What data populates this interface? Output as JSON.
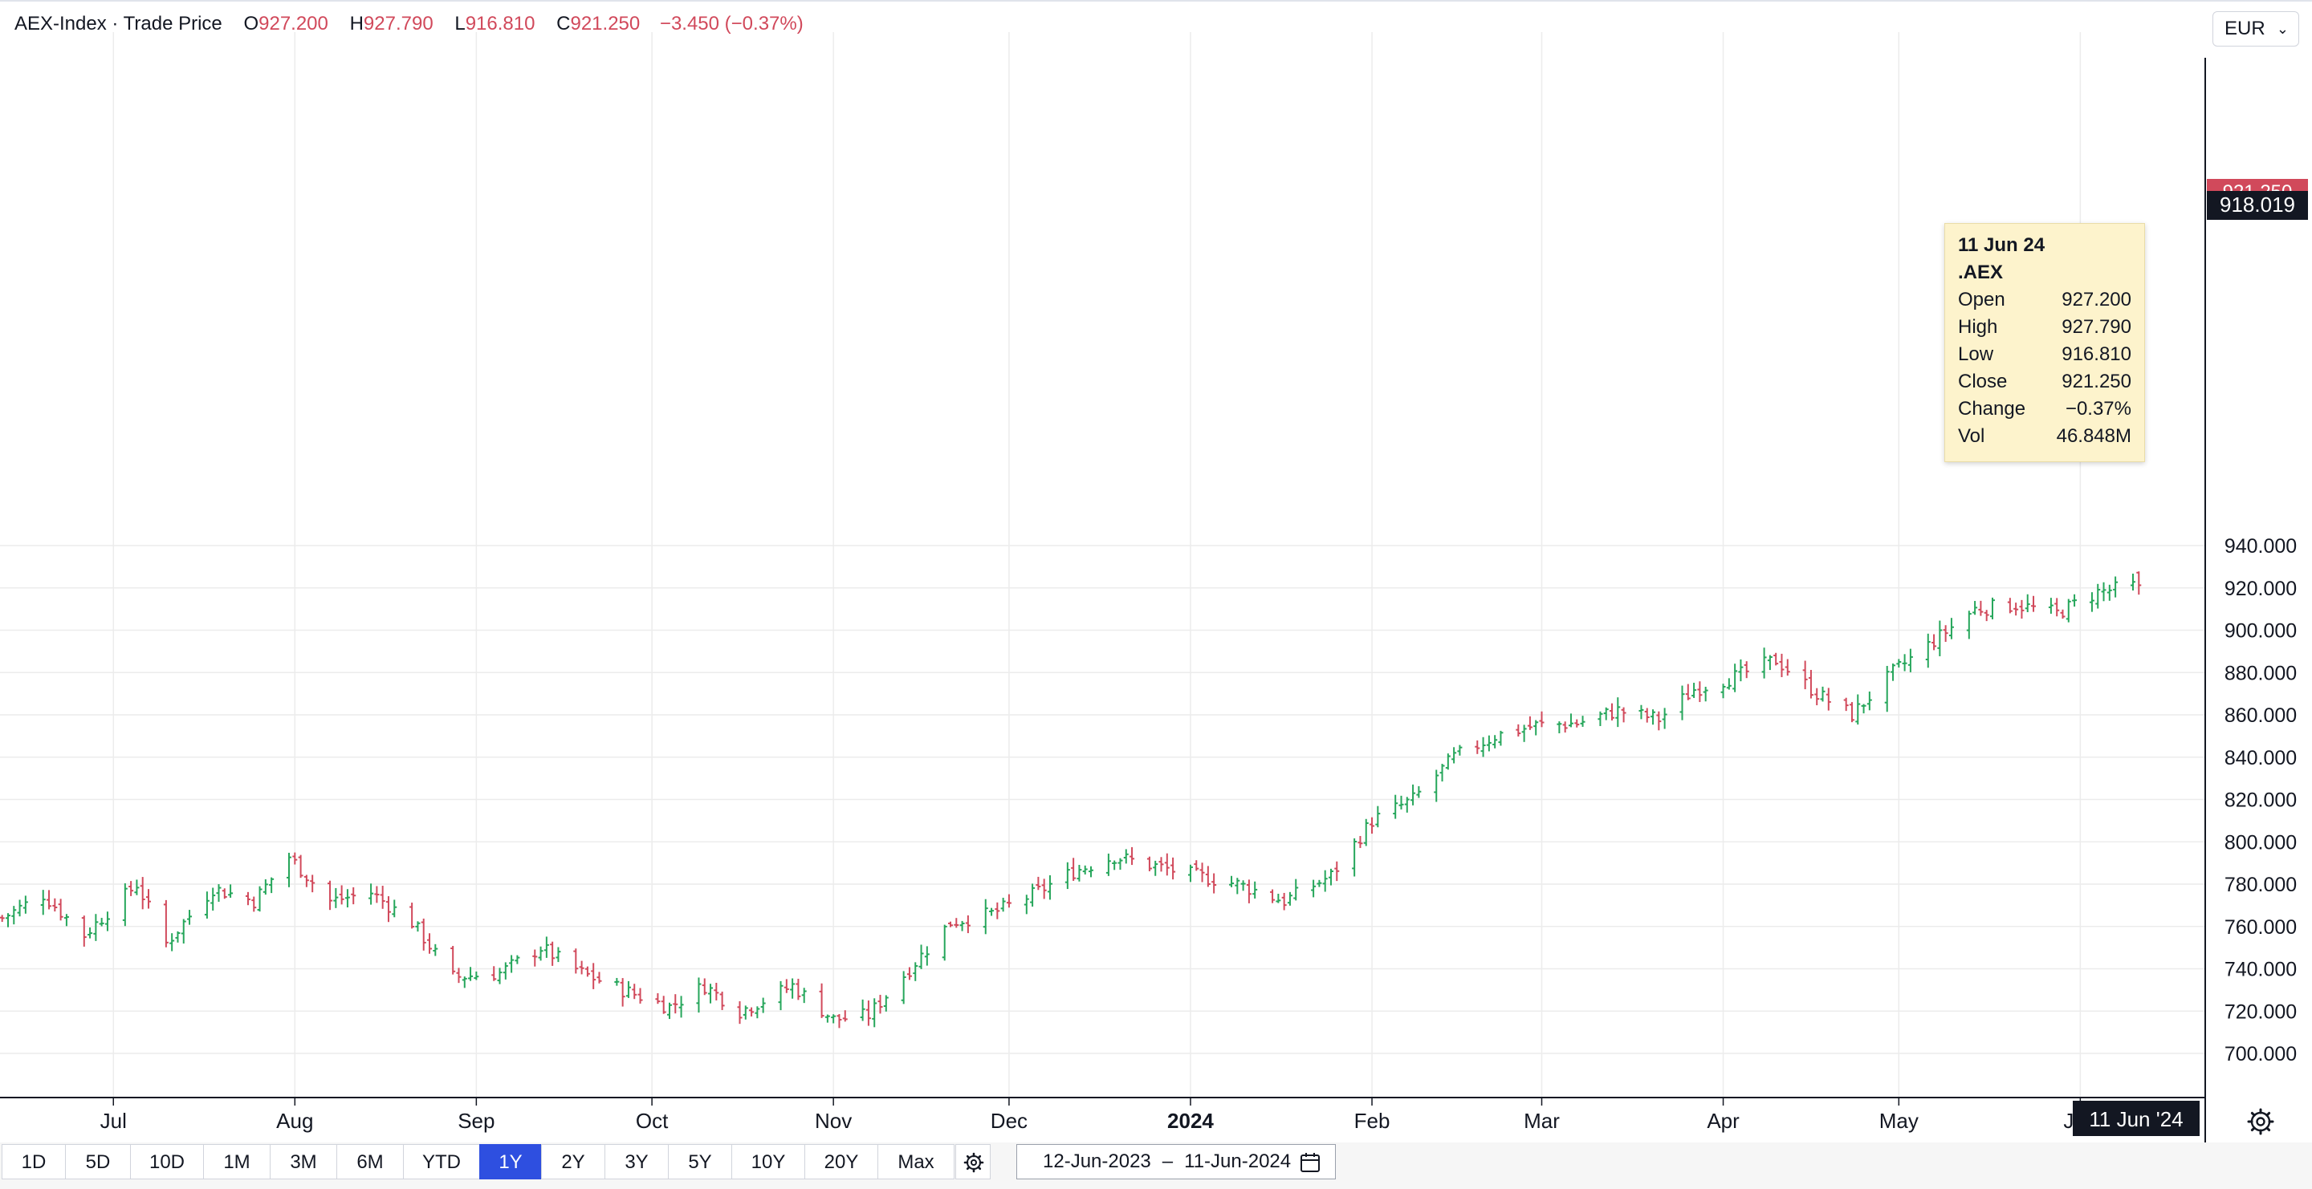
{
  "header": {
    "symbol": "AEX-Index · Trade Price",
    "open_label": "O",
    "open": "927.200",
    "high_label": "H",
    "high": "927.790",
    "low_label": "L",
    "low": "916.810",
    "close_label": "C",
    "close": "921.250",
    "change": "−3.450 (−0.37%)"
  },
  "currency": "EUR",
  "crosshair": {
    "price": "918.019",
    "date": "11 Jun '24"
  },
  "last_price_tag": "921.250",
  "tooltip": {
    "date": "11 Jun 24",
    "symbol": ".AEX",
    "rows": [
      {
        "label": "Open",
        "value": "927.200"
      },
      {
        "label": "High",
        "value": "927.790"
      },
      {
        "label": "Low",
        "value": "916.810"
      },
      {
        "label": "Close",
        "value": "921.250"
      },
      {
        "label": "Change",
        "value": "−0.37%"
      },
      {
        "label": "Vol",
        "value": "46.848M"
      }
    ]
  },
  "periods": [
    {
      "label": "1D",
      "active": false
    },
    {
      "label": "5D",
      "active": false
    },
    {
      "label": "10D",
      "active": false
    },
    {
      "label": "1M",
      "active": false
    },
    {
      "label": "3M",
      "active": false
    },
    {
      "label": "6M",
      "active": false
    },
    {
      "label": "YTD",
      "active": false
    },
    {
      "label": "1Y",
      "active": true
    },
    {
      "label": "2Y",
      "active": false
    },
    {
      "label": "3Y",
      "active": false
    },
    {
      "label": "5Y",
      "active": false
    },
    {
      "label": "10Y",
      "active": false
    },
    {
      "label": "20Y",
      "active": false
    },
    {
      "label": "Max",
      "active": false
    }
  ],
  "date_range": {
    "from": "12-Jun-2023",
    "separator": "–",
    "to": "11-Jun-2024"
  },
  "colors": {
    "up": "#26a65b",
    "down": "#d1495b",
    "accent": "#2e4fe0",
    "tooltip_bg": "#fdf3cc"
  },
  "icons": {
    "currency_dropdown": "chevron-down-icon",
    "period_settings": "gear-icon",
    "calendar": "calendar-icon",
    "chart_settings": "settings-icon"
  },
  "chart_data": {
    "type": "ohlc",
    "x_range": [
      "2023-06-12",
      "2024-06-11"
    ],
    "ylim": [
      690,
      950
    ],
    "y_ticks": [
      "700.000",
      "720.000",
      "740.000",
      "760.000",
      "780.000",
      "800.000",
      "820.000",
      "840.000",
      "860.000",
      "880.000",
      "900.000",
      "920.000",
      "940.000"
    ],
    "x_ticks": [
      {
        "label": "Jul",
        "date": "2023-07-01",
        "bold": false
      },
      {
        "label": "Aug",
        "date": "2023-08-01",
        "bold": false
      },
      {
        "label": "Sep",
        "date": "2023-09-01",
        "bold": false
      },
      {
        "label": "Oct",
        "date": "2023-10-01",
        "bold": false
      },
      {
        "label": "Nov",
        "date": "2023-11-01",
        "bold": false
      },
      {
        "label": "Dec",
        "date": "2023-12-01",
        "bold": false
      },
      {
        "label": "2024",
        "date": "2024-01-01",
        "bold": true
      },
      {
        "label": "Feb",
        "date": "2024-02-01",
        "bold": false
      },
      {
        "label": "Mar",
        "date": "2024-03-01",
        "bold": false
      },
      {
        "label": "Apr",
        "date": "2024-04-01",
        "bold": false
      },
      {
        "label": "May",
        "date": "2024-05-01",
        "bold": false
      },
      {
        "label": "Jun",
        "date": "2024-06-01",
        "bold": false
      }
    ],
    "grid": true,
    "anchors": [
      [
        "2023-06-12",
        764
      ],
      [
        "2023-06-19",
        775
      ],
      [
        "2023-06-26",
        756
      ],
      [
        "2023-07-05",
        780
      ],
      [
        "2023-07-10",
        752
      ],
      [
        "2023-07-18",
        778
      ],
      [
        "2023-07-25",
        772
      ],
      [
        "2023-07-31",
        793
      ],
      [
        "2023-08-07",
        772
      ],
      [
        "2023-08-14",
        776
      ],
      [
        "2023-08-21",
        762
      ],
      [
        "2023-08-28",
        736
      ],
      [
        "2023-09-05",
        738
      ],
      [
        "2023-09-12",
        750
      ],
      [
        "2023-09-19",
        738
      ],
      [
        "2023-09-26",
        730
      ],
      [
        "2023-10-04",
        722
      ],
      [
        "2023-10-10",
        732
      ],
      [
        "2023-10-16",
        720
      ],
      [
        "2023-10-20",
        725
      ],
      [
        "2023-10-25",
        732
      ],
      [
        "2023-11-01",
        716
      ],
      [
        "2023-11-07",
        718
      ],
      [
        "2023-11-14",
        740
      ],
      [
        "2023-11-21",
        762
      ],
      [
        "2023-11-28",
        766
      ],
      [
        "2023-12-05",
        775
      ],
      [
        "2023-12-12",
        786
      ],
      [
        "2023-12-19",
        793
      ],
      [
        "2024-01-02",
        784
      ],
      [
        "2024-01-09",
        780
      ],
      [
        "2024-01-17",
        772
      ],
      [
        "2024-01-25",
        784
      ],
      [
        "2024-02-01",
        810
      ],
      [
        "2024-02-08",
        820
      ],
      [
        "2024-02-15",
        840
      ],
      [
        "2024-02-22",
        850
      ],
      [
        "2024-02-29",
        855
      ],
      [
        "2024-03-07",
        856
      ],
      [
        "2024-03-14",
        862
      ],
      [
        "2024-03-21",
        858
      ],
      [
        "2024-03-27",
        872
      ],
      [
        "2024-04-03",
        878
      ],
      [
        "2024-04-10",
        886
      ],
      [
        "2024-04-17",
        870
      ],
      [
        "2024-04-23",
        860
      ],
      [
        "2024-04-30",
        880
      ],
      [
        "2024-05-07",
        895
      ],
      [
        "2024-05-14",
        910
      ],
      [
        "2024-05-21",
        912
      ],
      [
        "2024-05-28",
        908
      ],
      [
        "2024-06-04",
        918
      ],
      [
        "2024-06-11",
        921.25
      ]
    ],
    "last_bar": {
      "date": "2024-06-11",
      "open": 927.2,
      "high": 927.79,
      "low": 916.81,
      "close": 921.25,
      "volume": "46.848M"
    }
  }
}
